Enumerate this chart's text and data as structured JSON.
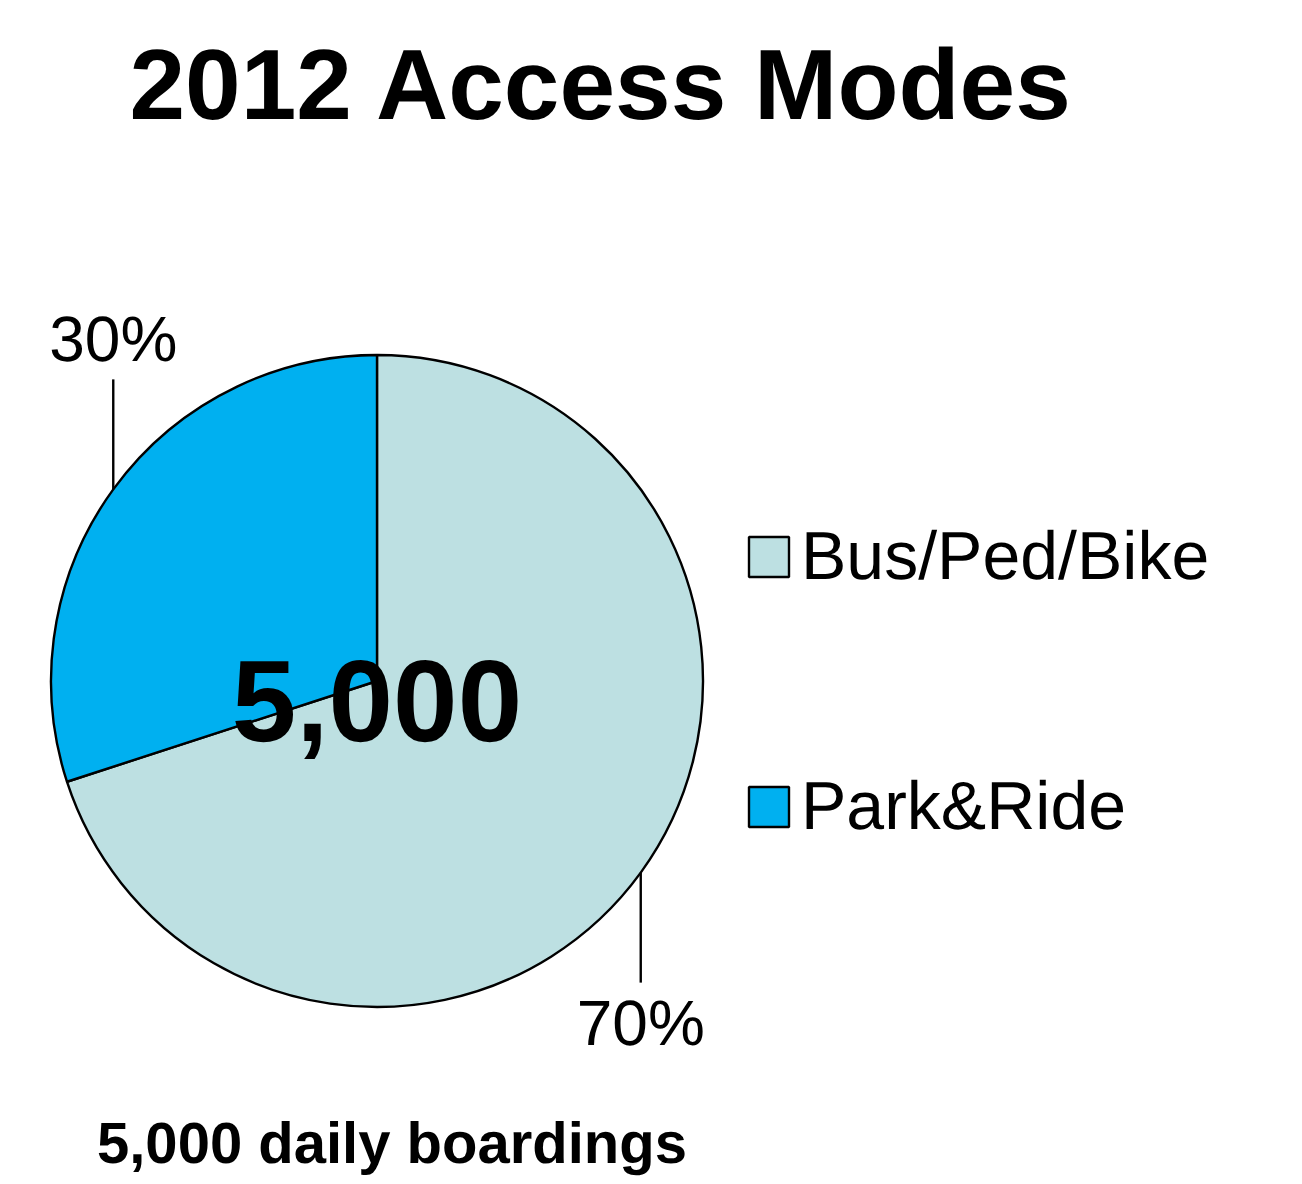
{
  "chart_data": {
    "type": "pie",
    "title": "2012 Access Modes",
    "categories": [
      "Bus/Ped/Bike",
      "Park&Ride"
    ],
    "values": [
      70,
      30
    ],
    "colors": [
      "#bde0e2",
      "#00b0f0"
    ],
    "value_labels": [
      "70%",
      "30%"
    ],
    "legend": "right",
    "annotations": [
      "5,000",
      "5,000 daily boardings"
    ]
  }
}
